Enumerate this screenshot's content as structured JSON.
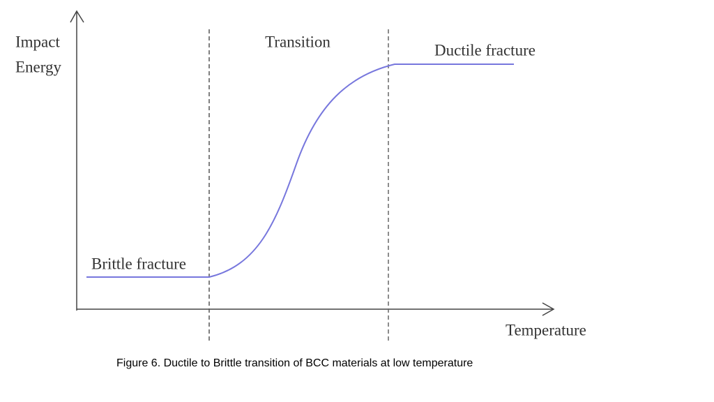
{
  "diagram": {
    "y_axis_label": [
      "Impact",
      "Energy"
    ],
    "x_axis_label": "Temperature",
    "regions": {
      "transition": "Transition",
      "ductile": "Ductile fracture",
      "brittle": "Brittle fracture"
    }
  },
  "caption": "Figure 6. Ductile to Brittle transition of BCC materials at low temperature"
}
